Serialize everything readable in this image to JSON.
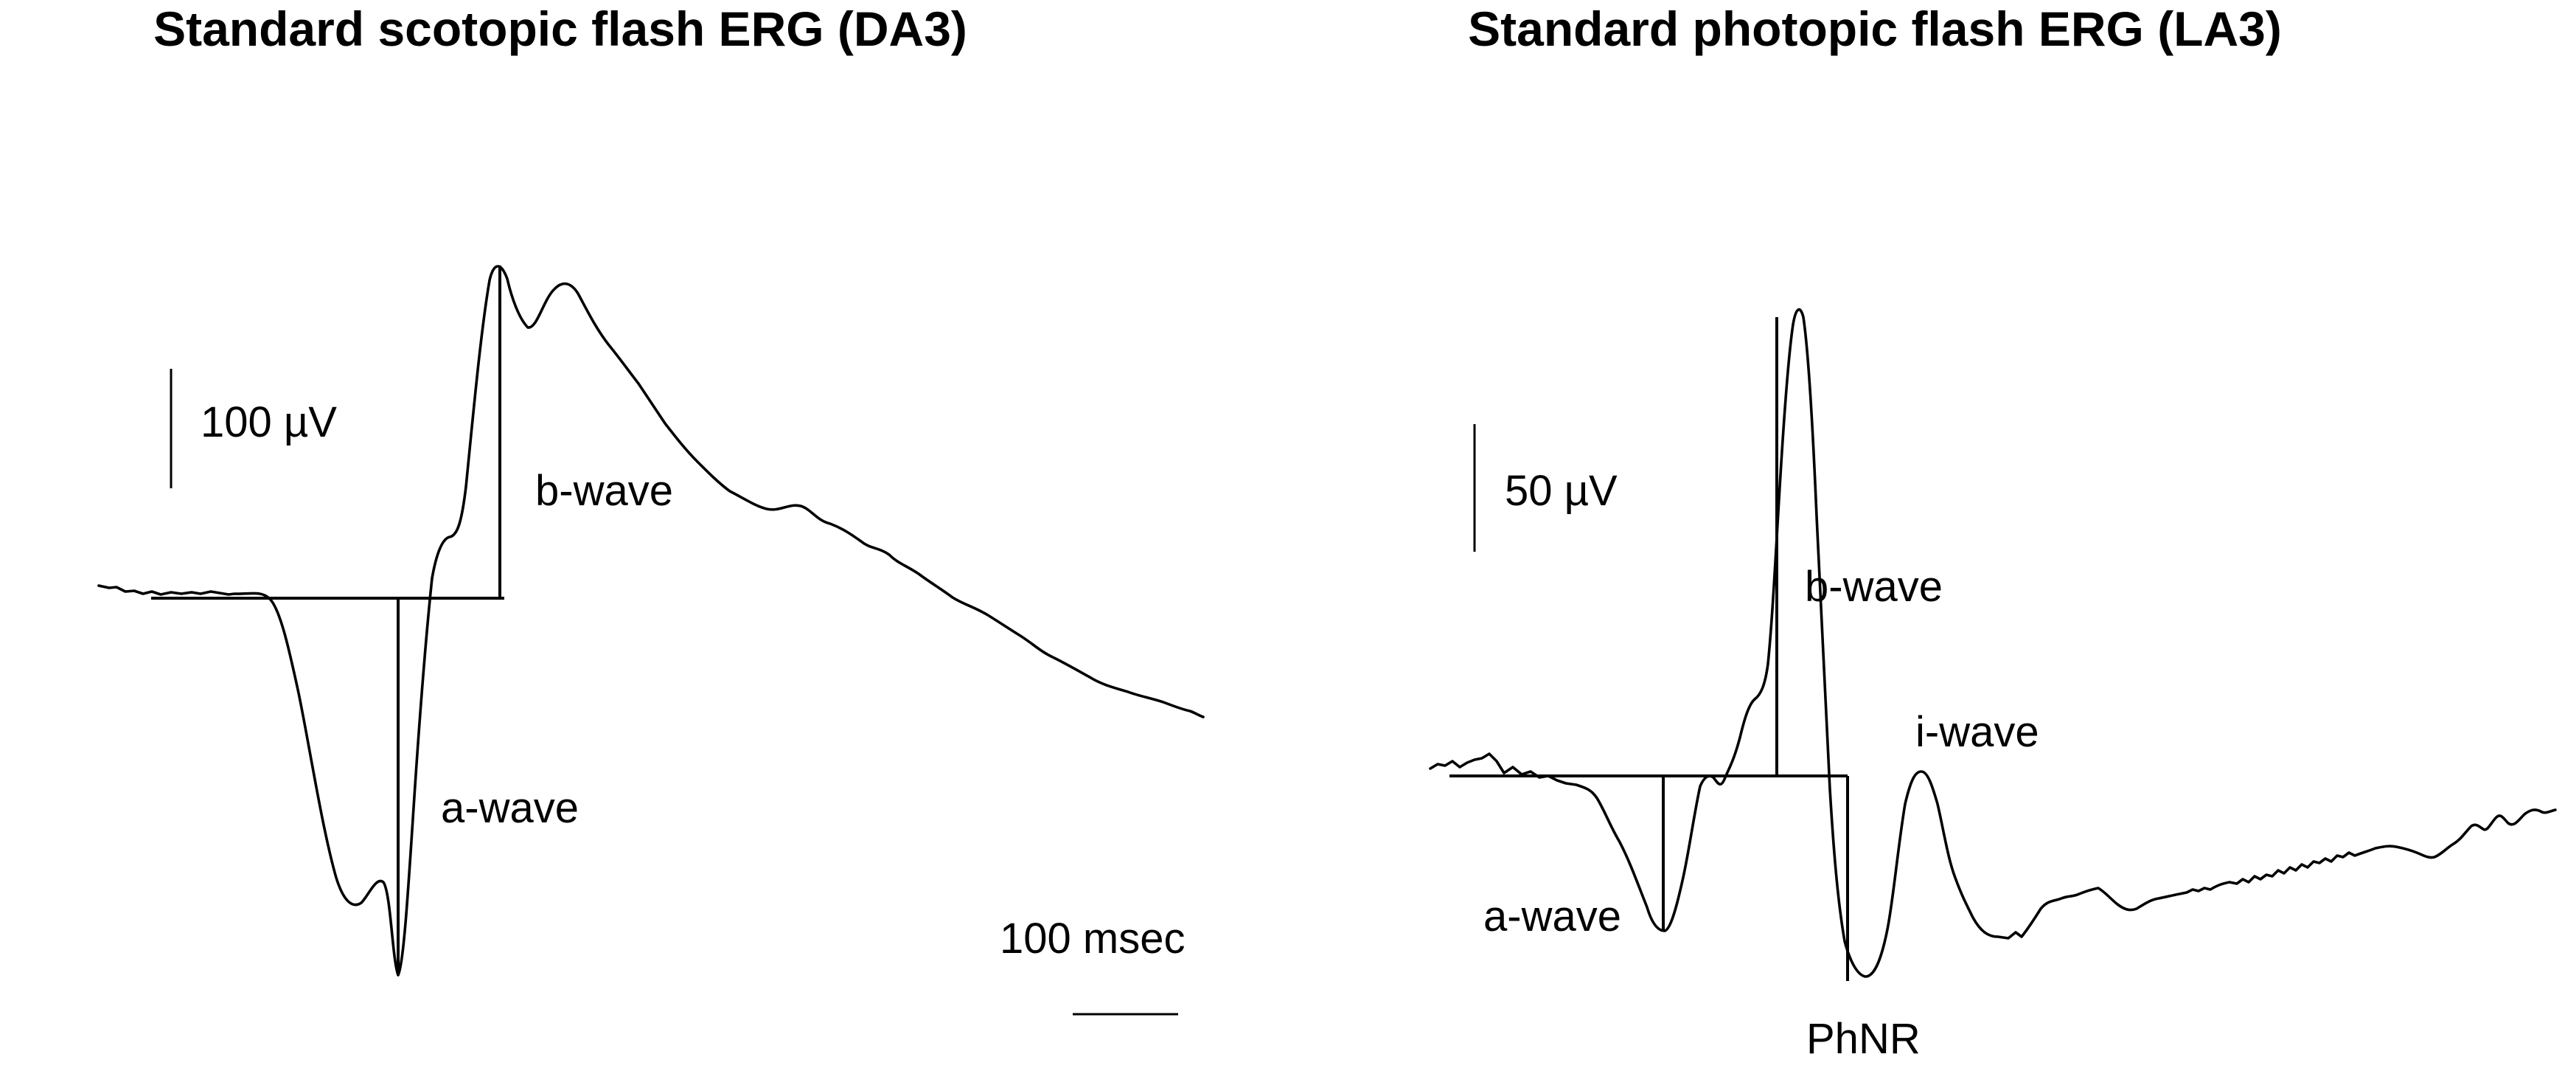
{
  "panels": [
    {
      "title": "Standard scotopic flash ERG (DA3)",
      "amplitude_scale": "100 µV",
      "time_scale": "100 msec",
      "a_wave_label": "a-wave",
      "b_wave_label": "b-wave"
    },
    {
      "title": "Standard photopic flash ERG (LA3)",
      "amplitude_scale": "50 µV",
      "a_wave_label": "a-wave",
      "b_wave_label": "b-wave",
      "i_wave_label": "i-wave",
      "phnr_label": "PhNR"
    }
  ]
}
